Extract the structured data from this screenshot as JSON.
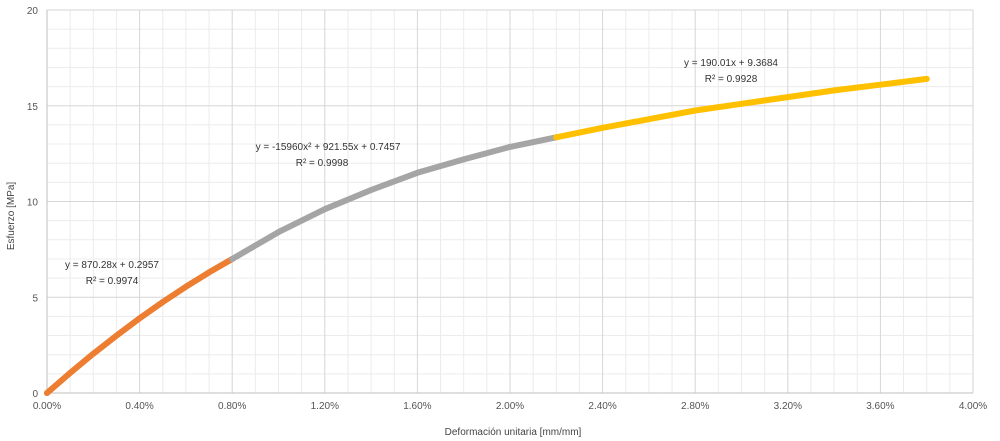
{
  "chart_data": {
    "type": "scatter",
    "xlabel": "Deformación unitaria [mm/mm]",
    "ylabel": "Esfuerzo [MPa]",
    "xlim": [
      0,
      0.04
    ],
    "ylim": [
      0,
      20
    ],
    "grid": true,
    "x_ticks": [
      0,
      0.004,
      0.008,
      0.012,
      0.016,
      0.02,
      0.024,
      0.028,
      0.032,
      0.036,
      0.04
    ],
    "x_tick_labels": [
      "0.00%",
      "0.40%",
      "0.80%",
      "1.20%",
      "1.60%",
      "2.00%",
      "2.40%",
      "2.80%",
      "3.20%",
      "3.60%",
      "4.00%"
    ],
    "y_ticks": [
      0,
      5,
      10,
      15,
      20
    ],
    "y_tick_labels": [
      "0",
      "5",
      "10",
      "15",
      "20"
    ],
    "series": [
      {
        "color": "#ED7D31",
        "x": [
          0,
          0.001,
          0.002,
          0.003,
          0.004,
          0.005,
          0.006,
          0.007,
          0.008
        ],
        "y": [
          0,
          1.05,
          2.05,
          3.0,
          3.9,
          4.75,
          5.55,
          6.3,
          7.0
        ]
      },
      {
        "color": "#A5A5A5",
        "x": [
          0.008,
          0.01,
          0.012,
          0.014,
          0.016,
          0.018,
          0.02,
          0.022
        ],
        "y": [
          7.0,
          8.4,
          9.6,
          10.6,
          11.5,
          12.2,
          12.85,
          13.35
        ]
      },
      {
        "color": "#FFC000",
        "x": [
          0.022,
          0.024,
          0.026,
          0.028,
          0.03,
          0.032,
          0.034,
          0.036,
          0.038
        ],
        "y": [
          13.35,
          13.85,
          14.3,
          14.75,
          15.1,
          15.45,
          15.8,
          16.1,
          16.4
        ]
      }
    ],
    "annotations": [
      {
        "line1": "y = 870.28x + 0.2957",
        "line2": "R² = 0.9974"
      },
      {
        "line1": "y = -15960x² + 921.55x + 0.7457",
        "line2": "R² = 0.9998"
      },
      {
        "line1": "y = 190.01x + 9.3684",
        "line2": "R² = 0.9928"
      }
    ]
  }
}
